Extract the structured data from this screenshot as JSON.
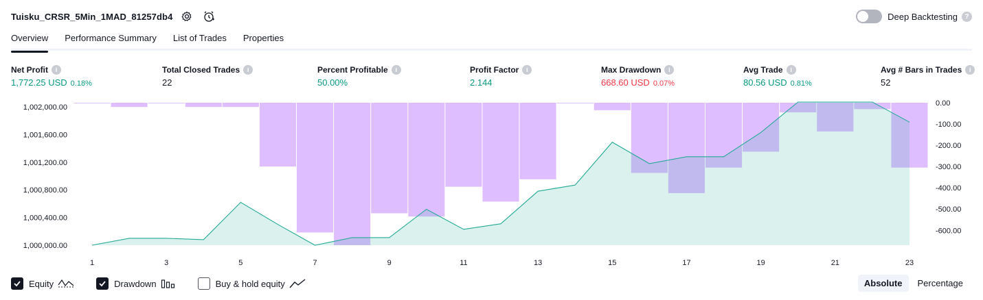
{
  "header": {
    "strategy_name": "Tuisku_CRSR_5Min_1MAD_81257db4"
  },
  "deep_backtesting": {
    "label": "Deep Backtesting",
    "enabled": false
  },
  "tabs": [
    {
      "label": "Overview",
      "active": true
    },
    {
      "label": "Performance Summary",
      "active": false
    },
    {
      "label": "List of Trades",
      "active": false
    },
    {
      "label": "Properties",
      "active": false
    }
  ],
  "metrics": {
    "net_profit": {
      "label": "Net Profit",
      "value": "1,772.25 USD",
      "pct": "0.18%"
    },
    "total_closed_trades": {
      "label": "Total Closed Trades",
      "value": "22"
    },
    "percent_profitable": {
      "label": "Percent Profitable",
      "value": "50.00%"
    },
    "profit_factor": {
      "label": "Profit Factor",
      "value": "2.144"
    },
    "max_drawdown": {
      "label": "Max Drawdown",
      "value": "668.60 USD",
      "pct": "0.07%"
    },
    "avg_trade": {
      "label": "Avg Trade",
      "value": "80.56 USD",
      "pct": "0.81%"
    },
    "avg_bars": {
      "label": "Avg # Bars in Trades",
      "value": "52"
    }
  },
  "chart_data": {
    "type": "area",
    "x": [
      1,
      2,
      3,
      4,
      5,
      6,
      7,
      8,
      9,
      10,
      11,
      12,
      13,
      14,
      15,
      16,
      17,
      18,
      19,
      20,
      21,
      22,
      23
    ],
    "x_tick_labels": [
      "1",
      "3",
      "5",
      "7",
      "9",
      "11",
      "13",
      "15",
      "17",
      "19",
      "21",
      "23"
    ],
    "series": [
      {
        "values": [
          1000000,
          1000100,
          1000100,
          1000080,
          1000620,
          1000300,
          1000000,
          1000110,
          1000110,
          1000520,
          1000230,
          1000310,
          1000780,
          1000870,
          1001490,
          1001180,
          1001280,
          1001280,
          1001630,
          1002070,
          1002070,
          1002070,
          1001780
        ],
        "axis": "left",
        "color": "#22ab94"
      },
      {
        "values": [
          0,
          -20,
          0,
          -20,
          -20,
          -300,
          -610,
          -670,
          -520,
          -535,
          -395,
          -465,
          -360,
          0,
          -35,
          -330,
          -425,
          -305,
          -230,
          -45,
          -135,
          -30,
          -305
        ],
        "axis": "right",
        "color": "#d9b3ff"
      }
    ],
    "y_left": {
      "ticks": [
        "1,000,000.00",
        "1,000,400.00",
        "1,000,800.00",
        "1,001,200.00",
        "1,001,600.00",
        "1,002,000.00"
      ],
      "range": [
        1000000,
        1002060
      ]
    },
    "y_right": {
      "ticks": [
        "0.00",
        "-100.00",
        "-200.00",
        "-300.00",
        "-400.00",
        "-500.00",
        "-600.00"
      ],
      "range": [
        0,
        -670
      ]
    },
    "grid": false
  },
  "legend": [
    {
      "label": "Equity",
      "checked": true,
      "icon": "equity-line-icon"
    },
    {
      "label": "Drawdown",
      "checked": true,
      "icon": "drawdown-bars-icon"
    },
    {
      "label": "Buy & hold equity",
      "checked": false,
      "icon": "buy-hold-line-icon"
    }
  ],
  "mode": {
    "absolute_label": "Absolute",
    "percentage_label": "Percentage",
    "active": "absolute"
  }
}
